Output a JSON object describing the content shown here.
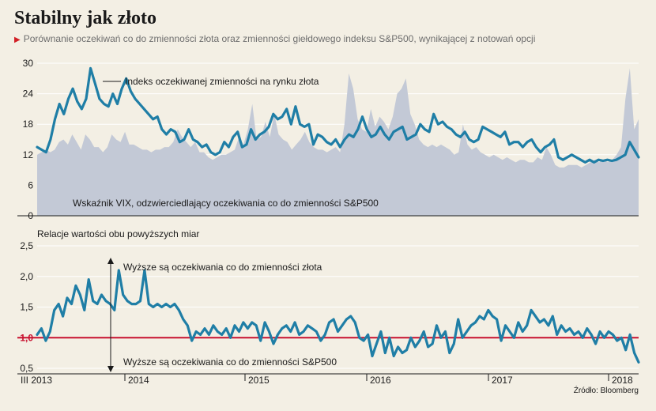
{
  "header": {
    "title": "Stabilny jak złoto",
    "subtitle": "Porównanie oczekiwań co do zmienności złota oraz zmienności giełdowego indeksu S&P500, wynikającej z notowań opcji",
    "source": "Źródło: Bloomberg"
  },
  "colors": {
    "background": "#f3efe4",
    "gold_line": "#1f7ea6",
    "vix_area": "#c3c9d6",
    "reference_line": "#c8102e",
    "text": "#1a1a1a",
    "grid": "#ffffff"
  },
  "chart_data": [
    {
      "type": "area",
      "x_ticks": [
        "III 2013",
        "2014",
        "2015",
        "2016",
        "2017",
        "2018"
      ],
      "ylim": [
        0,
        30
      ],
      "y_ticks": [
        "0",
        "6",
        "12",
        "18",
        "24",
        "30"
      ],
      "grid": true,
      "annotations": [
        "Indeks oczekiwanej zmienności na rynku złota",
        "Wskaźnik VIX, odzwierciedlający oczekiwania co do zmienności S&P500"
      ],
      "series": [
        {
          "name": "Indeks oczekiwanej zmienności na rynku złota",
          "render": "line",
          "values": [
            13.5,
            13,
            12.5,
            15,
            19,
            22,
            20,
            23,
            25,
            22.5,
            21,
            23,
            29,
            26,
            23,
            22,
            21.5,
            24,
            22,
            25,
            27,
            24.5,
            23,
            22,
            21,
            20,
            19,
            19.5,
            17,
            16,
            17,
            16.5,
            14.5,
            15,
            17,
            15,
            14.5,
            13.5,
            14,
            12.5,
            12,
            12.5,
            14.5,
            13.5,
            15.5,
            16.5,
            13.5,
            14,
            17,
            15,
            16,
            16.5,
            17.5,
            20,
            19,
            19.5,
            21,
            18,
            21.5,
            18,
            17.5,
            18,
            14,
            16,
            15.5,
            14.5,
            14,
            15,
            13.5,
            15,
            16,
            15.5,
            17,
            19.5,
            17,
            15.5,
            16,
            17.5,
            16,
            15,
            16.5,
            17,
            17.5,
            15,
            15.5,
            16,
            18,
            17,
            16.5,
            20,
            18,
            18.5,
            17.5,
            17,
            16,
            15.5,
            16.5,
            15,
            14.5,
            15,
            17.5,
            17,
            16.5,
            16,
            15.5,
            16.5,
            14,
            14.5,
            14.5,
            13.5,
            14.5,
            15,
            13.5,
            12.5,
            13.5,
            14,
            15,
            11.5,
            11,
            11.5,
            12,
            11.5,
            11,
            10.5,
            11,
            10.5,
            11,
            10.8,
            11,
            10.8,
            11,
            11.5,
            12,
            14.5,
            13,
            11.5
          ]
        },
        {
          "name": "Wskaźnik VIX, odzwierciedlający oczekiwania co do zmienności S&P500",
          "render": "area",
          "values": [
            12,
            12.5,
            13,
            12.5,
            13,
            14.5,
            15,
            14,
            16,
            14.5,
            13,
            16,
            15,
            13.5,
            13.5,
            12.5,
            13.5,
            16,
            15,
            14.5,
            16.5,
            14,
            14,
            13.5,
            13,
            13,
            12.5,
            13,
            13,
            13.5,
            13.5,
            14.5,
            17,
            15.5,
            14.5,
            13.5,
            14.5,
            12.5,
            12.5,
            11.5,
            11,
            11.5,
            12,
            12,
            12.5,
            13,
            15.5,
            14,
            17,
            22,
            15,
            15.5,
            18.5,
            15.5,
            20,
            16,
            15,
            14.5,
            13,
            14,
            15,
            16.5,
            14.5,
            13.5,
            13,
            13,
            12.5,
            13,
            13.5,
            12.5,
            18,
            28,
            25,
            19,
            17,
            16.5,
            21,
            17.5,
            19.5,
            18.5,
            17,
            19.5,
            24,
            25,
            27,
            20,
            18,
            15,
            14,
            13.5,
            14,
            13.5,
            14,
            13.5,
            13,
            12,
            12.5,
            18,
            14,
            13,
            13.5,
            12.5,
            12,
            11.5,
            12,
            11.5,
            11,
            11.5,
            11,
            10.5,
            11,
            11,
            10.5,
            10.5,
            11.5,
            11,
            13.5,
            12,
            10,
            9.5,
            9.5,
            10,
            10,
            10,
            9.5,
            10,
            10.5,
            11,
            10.5,
            11,
            10.5,
            11,
            12,
            13.5,
            23,
            29,
            17,
            19
          ]
        }
      ]
    },
    {
      "type": "line",
      "title": "Relacje wartości obu powyższych miar",
      "x_ticks": [
        "III 2013",
        "2014",
        "2015",
        "2016",
        "2017",
        "2018"
      ],
      "ylim": [
        0.5,
        2.5
      ],
      "y_ticks": [
        "0,5",
        "1,0",
        "1,5",
        "2,0",
        "2,5"
      ],
      "reference_value": 1.0,
      "grid": true,
      "annotations": [
        "Wyższe są oczekiwania co do zmienności złota",
        "Wyższe są  oczekiwania co do zmienności S&P500"
      ],
      "series": [
        {
          "name": "Relacje wartości obu powyższych miar",
          "values": [
            1.05,
            1.15,
            0.95,
            1.1,
            1.45,
            1.55,
            1.35,
            1.65,
            1.55,
            1.85,
            1.7,
            1.45,
            1.95,
            1.6,
            1.55,
            1.7,
            1.6,
            1.55,
            1.45,
            2.1,
            1.7,
            1.6,
            1.55,
            1.55,
            1.6,
            2.1,
            1.55,
            1.5,
            1.55,
            1.5,
            1.55,
            1.5,
            1.55,
            1.45,
            1.3,
            1.2,
            0.95,
            1.1,
            1.05,
            1.15,
            1.05,
            1.2,
            1.1,
            1.05,
            1.15,
            1.0,
            1.2,
            1.1,
            1.25,
            1.15,
            1.25,
            1.2,
            0.95,
            1.25,
            1.1,
            0.9,
            1.05,
            1.15,
            1.2,
            1.1,
            1.25,
            1.05,
            1.1,
            1.2,
            1.15,
            1.1,
            0.95,
            1.05,
            1.25,
            1.3,
            1.1,
            1.2,
            1.3,
            1.35,
            1.25,
            1.0,
            0.95,
            1.05,
            0.7,
            0.9,
            1.1,
            0.75,
            1.0,
            0.7,
            0.85,
            0.75,
            0.8,
            1.0,
            0.85,
            0.95,
            1.1,
            0.85,
            0.9,
            1.2,
            1.0,
            1.1,
            0.75,
            0.9,
            1.3,
            1.0,
            1.1,
            1.2,
            1.25,
            1.35,
            1.3,
            1.45,
            1.35,
            1.3,
            0.95,
            1.2,
            1.1,
            1.0,
            1.25,
            1.1,
            1.2,
            1.45,
            1.35,
            1.25,
            1.3,
            1.2,
            1.35,
            1.05,
            1.2,
            1.1,
            1.15,
            1.05,
            1.1,
            1.0,
            1.15,
            1.05,
            0.9,
            1.1,
            1.0,
            1.1,
            1.05,
            0.95,
            1.0,
            0.8,
            1.05,
            0.75,
            0.6
          ]
        }
      ]
    }
  ]
}
